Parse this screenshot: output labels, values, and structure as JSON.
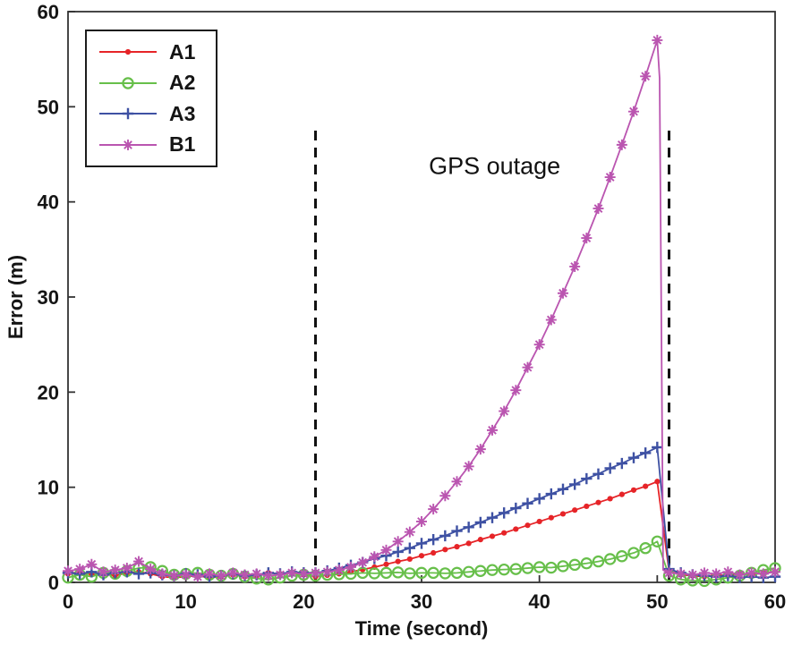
{
  "figure": {
    "title": "",
    "xlabel": "Time (second)",
    "ylabel": "Error (m)",
    "annotation": "GPS outage"
  },
  "chart_data": {
    "type": "line",
    "title": "",
    "xlabel": "Time (second)",
    "ylabel": "Error (m)",
    "xlim": [
      0,
      60
    ],
    "ylim": [
      0,
      60
    ],
    "xticks": [
      0,
      10,
      20,
      30,
      40,
      50,
      60
    ],
    "yticks": [
      0,
      10,
      20,
      30,
      40,
      50,
      60
    ],
    "grid": false,
    "legend_position": "top-left",
    "axis_color": "#333333",
    "annotations": [
      {
        "text": "GPS outage",
        "x": 36.2,
        "y": 43.7,
        "color": "#111111"
      }
    ],
    "vlines": [
      {
        "x": 21,
        "y0": 0,
        "y1": 48,
        "style": "dashed",
        "color": "#111111"
      },
      {
        "x": 51,
        "y0": 0,
        "y1": 48,
        "style": "dashed",
        "color": "#111111"
      }
    ],
    "series": [
      {
        "name": "A1",
        "color": "#e62428",
        "marker": "dot",
        "points": [
          [
            0,
            0.9
          ],
          [
            1,
            1.1
          ],
          [
            2,
            0.8
          ],
          [
            3,
            0.9
          ],
          [
            4,
            0.7
          ],
          [
            5,
            1.0
          ],
          [
            6,
            1.1
          ],
          [
            7,
            0.9
          ],
          [
            8,
            0.6
          ],
          [
            9,
            0.5
          ],
          [
            10,
            0.6
          ],
          [
            11,
            0.7
          ],
          [
            12,
            0.5
          ],
          [
            13,
            0.6
          ],
          [
            14,
            0.8
          ],
          [
            15,
            0.6
          ],
          [
            16,
            0.7
          ],
          [
            17,
            1.0
          ],
          [
            18,
            0.9
          ],
          [
            19,
            1.0
          ],
          [
            20,
            0.8
          ],
          [
            21,
            0.6
          ],
          [
            22,
            0.75
          ],
          [
            23,
            0.9
          ],
          [
            24,
            1.1
          ],
          [
            25,
            1.35
          ],
          [
            26,
            1.6
          ],
          [
            27,
            1.9
          ],
          [
            28,
            2.2
          ],
          [
            29,
            2.45
          ],
          [
            30,
            2.8
          ],
          [
            31,
            3.1
          ],
          [
            32,
            3.45
          ],
          [
            33,
            3.75
          ],
          [
            34,
            4.1
          ],
          [
            35,
            4.5
          ],
          [
            36,
            4.85
          ],
          [
            37,
            5.2
          ],
          [
            38,
            5.6
          ],
          [
            39,
            6.0
          ],
          [
            40,
            6.4
          ],
          [
            41,
            6.8
          ],
          [
            42,
            7.2
          ],
          [
            43,
            7.6
          ],
          [
            44,
            8.0
          ],
          [
            45,
            8.4
          ],
          [
            46,
            8.8
          ],
          [
            47,
            9.25
          ],
          [
            48,
            9.7
          ],
          [
            49,
            10.1
          ],
          [
            50,
            10.6
          ],
          [
            51,
            1.2
          ],
          [
            52,
            0.8
          ],
          [
            53,
            0.7
          ],
          [
            54,
            0.6
          ],
          [
            55,
            0.8
          ],
          [
            56,
            0.7
          ],
          [
            57,
            0.9
          ],
          [
            58,
            0.8
          ],
          [
            59,
            1.0
          ],
          [
            60,
            1.1
          ]
        ]
      },
      {
        "name": "A2",
        "color": "#67bf4a",
        "marker": "circle",
        "points": [
          [
            0,
            0.5
          ],
          [
            1,
            0.8
          ],
          [
            2,
            0.6
          ],
          [
            3,
            1.0
          ],
          [
            4,
            0.9
          ],
          [
            5,
            1.2
          ],
          [
            6,
            1.5
          ],
          [
            7,
            1.6
          ],
          [
            8,
            1.2
          ],
          [
            9,
            0.8
          ],
          [
            10,
            0.9
          ],
          [
            11,
            1.0
          ],
          [
            12,
            0.8
          ],
          [
            13,
            0.7
          ],
          [
            14,
            0.9
          ],
          [
            15,
            0.6
          ],
          [
            16,
            0.4
          ],
          [
            17,
            0.3
          ],
          [
            18,
            0.5
          ],
          [
            19,
            0.7
          ],
          [
            20,
            0.8
          ],
          [
            21,
            0.7
          ],
          [
            22,
            0.8
          ],
          [
            23,
            0.85
          ],
          [
            24,
            0.9
          ],
          [
            25,
            1.0
          ],
          [
            26,
            0.95
          ],
          [
            27,
            1.0
          ],
          [
            28,
            1.05
          ],
          [
            29,
            0.95
          ],
          [
            30,
            1.0
          ],
          [
            31,
            1.0
          ],
          [
            32,
            0.95
          ],
          [
            33,
            1.0
          ],
          [
            34,
            1.1
          ],
          [
            35,
            1.2
          ],
          [
            36,
            1.3
          ],
          [
            37,
            1.35
          ],
          [
            38,
            1.4
          ],
          [
            39,
            1.5
          ],
          [
            40,
            1.6
          ],
          [
            41,
            1.55
          ],
          [
            42,
            1.7
          ],
          [
            43,
            1.85
          ],
          [
            44,
            2.0
          ],
          [
            45,
            2.2
          ],
          [
            46,
            2.45
          ],
          [
            47,
            2.75
          ],
          [
            48,
            3.1
          ],
          [
            49,
            3.6
          ],
          [
            50,
            4.3
          ],
          [
            51,
            0.7
          ],
          [
            52,
            0.3
          ],
          [
            53,
            0.2
          ],
          [
            54,
            0.15
          ],
          [
            55,
            0.3
          ],
          [
            56,
            0.5
          ],
          [
            57,
            0.7
          ],
          [
            58,
            1.0
          ],
          [
            59,
            1.3
          ],
          [
            60,
            1.5
          ]
        ]
      },
      {
        "name": "A3",
        "color": "#3e51a3",
        "marker": "plus",
        "points": [
          [
            0,
            1.0
          ],
          [
            1,
            0.9
          ],
          [
            2,
            1.1
          ],
          [
            3,
            0.8
          ],
          [
            4,
            1.0
          ],
          [
            5,
            1.1
          ],
          [
            6,
            0.9
          ],
          [
            7,
            1.0
          ],
          [
            8,
            0.8
          ],
          [
            9,
            0.7
          ],
          [
            10,
            0.9
          ],
          [
            11,
            0.8
          ],
          [
            12,
            0.6
          ],
          [
            13,
            0.7
          ],
          [
            14,
            0.9
          ],
          [
            15,
            0.7
          ],
          [
            16,
            0.8
          ],
          [
            17,
            1.0
          ],
          [
            18,
            0.9
          ],
          [
            19,
            1.1
          ],
          [
            20,
            1.0
          ],
          [
            21,
            1.0
          ],
          [
            22,
            1.2
          ],
          [
            23,
            1.5
          ],
          [
            24,
            1.8
          ],
          [
            25,
            2.1
          ],
          [
            26,
            2.5
          ],
          [
            27,
            2.8
          ],
          [
            28,
            3.2
          ],
          [
            29,
            3.6
          ],
          [
            30,
            4.1
          ],
          [
            31,
            4.5
          ],
          [
            32,
            4.9
          ],
          [
            33,
            5.4
          ],
          [
            34,
            5.8
          ],
          [
            35,
            6.3
          ],
          [
            36,
            6.8
          ],
          [
            37,
            7.3
          ],
          [
            38,
            7.8
          ],
          [
            39,
            8.3
          ],
          [
            40,
            8.8
          ],
          [
            41,
            9.3
          ],
          [
            42,
            9.8
          ],
          [
            43,
            10.3
          ],
          [
            44,
            10.9
          ],
          [
            45,
            11.4
          ],
          [
            46,
            12.0
          ],
          [
            47,
            12.5
          ],
          [
            48,
            13.1
          ],
          [
            49,
            13.6
          ],
          [
            50,
            14.2
          ],
          [
            51,
            1.4
          ],
          [
            52,
            1.0
          ],
          [
            53,
            0.8
          ],
          [
            54,
            0.7
          ],
          [
            55,
            0.6
          ],
          [
            56,
            0.7
          ],
          [
            57,
            0.5
          ],
          [
            58,
            0.6
          ],
          [
            59,
            0.5
          ],
          [
            60,
            0.6
          ]
        ]
      },
      {
        "name": "B1",
        "color": "#ba55b0",
        "marker": "asterisk",
        "points": [
          [
            0,
            1.2
          ],
          [
            1,
            1.4
          ],
          [
            2,
            1.9
          ],
          [
            3,
            1.1
          ],
          [
            4,
            1.3
          ],
          [
            5,
            1.5
          ],
          [
            6,
            2.2
          ],
          [
            7,
            1.4
          ],
          [
            8,
            0.9
          ],
          [
            9,
            0.7
          ],
          [
            10,
            0.8
          ],
          [
            11,
            0.6
          ],
          [
            12,
            0.9
          ],
          [
            13,
            0.7
          ],
          [
            14,
            1.0
          ],
          [
            15,
            0.8
          ],
          [
            16,
            0.9
          ],
          [
            17,
            0.7
          ],
          [
            18,
            0.8
          ],
          [
            19,
            1.0
          ],
          [
            20,
            0.9
          ],
          [
            21,
            1.0
          ],
          [
            22,
            1.1
          ],
          [
            23,
            1.3
          ],
          [
            24,
            1.6
          ],
          [
            25,
            2.1
          ],
          [
            26,
            2.7
          ],
          [
            27,
            3.4
          ],
          [
            28,
            4.3
          ],
          [
            29,
            5.3
          ],
          [
            30,
            6.4
          ],
          [
            31,
            7.7
          ],
          [
            32,
            9.1
          ],
          [
            33,
            10.6
          ],
          [
            34,
            12.2
          ],
          [
            35,
            14.0
          ],
          [
            36,
            16.0
          ],
          [
            37,
            18.0
          ],
          [
            38,
            20.2
          ],
          [
            39,
            22.6
          ],
          [
            40,
            25.0
          ],
          [
            41,
            27.6
          ],
          [
            42,
            30.4
          ],
          [
            43,
            33.2
          ],
          [
            44,
            36.2
          ],
          [
            45,
            39.3
          ],
          [
            46,
            42.6
          ],
          [
            47,
            46.0
          ],
          [
            48,
            49.5
          ],
          [
            49,
            53.2
          ],
          [
            50,
            57.0
          ],
          [
            50.2,
            53.0
          ],
          [
            50.5,
            1.3
          ],
          [
            51,
            1.0
          ],
          [
            52,
            0.9
          ],
          [
            53,
            0.8
          ],
          [
            54,
            1.0
          ],
          [
            55,
            0.9
          ],
          [
            56,
            1.1
          ],
          [
            57,
            0.8
          ],
          [
            58,
            1.0
          ],
          [
            59,
            0.9
          ],
          [
            60,
            1.1
          ]
        ]
      }
    ]
  }
}
